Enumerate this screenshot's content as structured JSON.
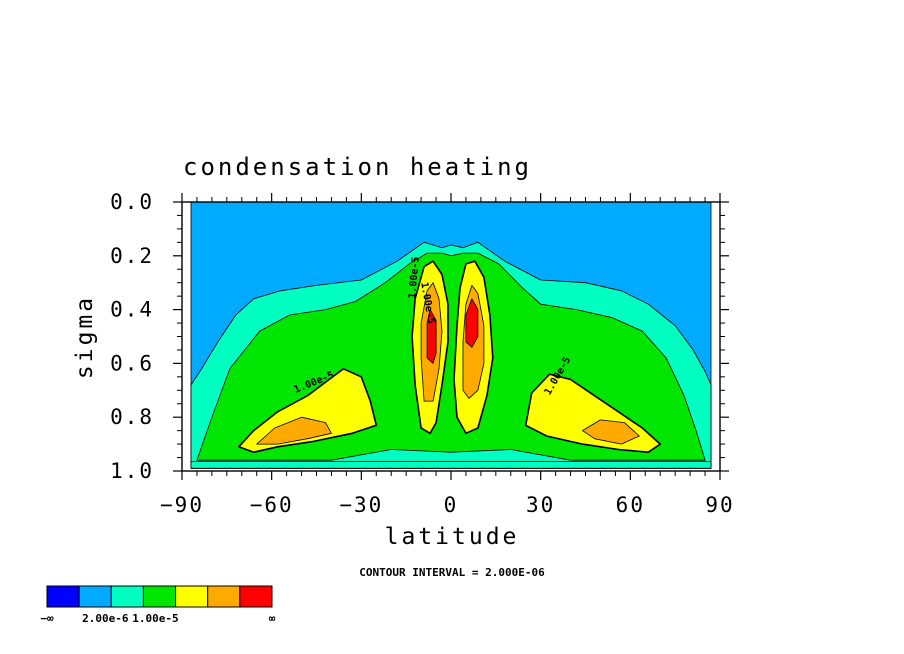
{
  "chart_data": {
    "type": "contour",
    "title": "condensation heating",
    "xlabel": "latitude",
    "ylabel": "sigma",
    "xlim": [
      -90,
      90
    ],
    "ylim": [
      1.0,
      0.0
    ],
    "x_ticks": [
      "−90",
      "−60",
      "−30",
      "0",
      "30",
      "60",
      "90"
    ],
    "x_tick_values": [
      -90,
      -60,
      -30,
      0,
      30,
      60,
      90
    ],
    "y_ticks": [
      "0.0",
      "0.2",
      "0.4",
      "0.6",
      "0.8",
      "1.0"
    ],
    "y_tick_values": [
      0.0,
      0.2,
      0.4,
      0.6,
      0.8,
      1.0
    ],
    "contour_interval_text": "CONTOUR INTERVAL = 2.000E-06",
    "contour_labels": [
      "1.00e-5",
      "1.00e-5",
      "1.00e-5",
      "1.00e-5"
    ],
    "colorbar": {
      "colors": [
        "#0000ff",
        "#00aaff",
        "#00ffc0",
        "#00e600",
        "#ffff00",
        "#ffaa00",
        "#ff0000"
      ],
      "labels": [
        "−∞",
        "2.00e-6",
        "1.00e-5",
        "∞"
      ]
    },
    "regions": [
      {
        "level": 1,
        "name": "background",
        "points": [
          [
            -87,
            0.0
          ],
          [
            87,
            0.0
          ],
          [
            87,
            0.99
          ],
          [
            -87,
            0.99
          ]
        ]
      },
      {
        "level": 2,
        "name": "envelope",
        "points": [
          [
            -87,
            0.68
          ],
          [
            -84,
            0.63
          ],
          [
            -78,
            0.52
          ],
          [
            -72,
            0.42
          ],
          [
            -66,
            0.36
          ],
          [
            -57,
            0.33
          ],
          [
            -45,
            0.31
          ],
          [
            -30,
            0.29
          ],
          [
            -18,
            0.22
          ],
          [
            -9,
            0.15
          ],
          [
            -3,
            0.17
          ],
          [
            0,
            0.16
          ],
          [
            4,
            0.17
          ],
          [
            9,
            0.15
          ],
          [
            18,
            0.22
          ],
          [
            30,
            0.29
          ],
          [
            45,
            0.3
          ],
          [
            57,
            0.33
          ],
          [
            66,
            0.38
          ],
          [
            75,
            0.46
          ],
          [
            81,
            0.55
          ],
          [
            85,
            0.63
          ],
          [
            87,
            0.68
          ],
          [
            87,
            0.99
          ],
          [
            -87,
            0.99
          ]
        ]
      },
      {
        "level": 3,
        "name": "green-band",
        "points": [
          [
            -85,
            0.96
          ],
          [
            -80,
            0.8
          ],
          [
            -74,
            0.62
          ],
          [
            -64,
            0.48
          ],
          [
            -54,
            0.42
          ],
          [
            -42,
            0.4
          ],
          [
            -32,
            0.37
          ],
          [
            -22,
            0.3
          ],
          [
            -14,
            0.23
          ],
          [
            -8,
            0.19
          ],
          [
            -3,
            0.19
          ],
          [
            0,
            0.2
          ],
          [
            4,
            0.19
          ],
          [
            9,
            0.19
          ],
          [
            16,
            0.23
          ],
          [
            24,
            0.32
          ],
          [
            30,
            0.38
          ],
          [
            42,
            0.4
          ],
          [
            54,
            0.43
          ],
          [
            64,
            0.48
          ],
          [
            72,
            0.58
          ],
          [
            78,
            0.72
          ],
          [
            82,
            0.85
          ],
          [
            85,
            0.96
          ],
          [
            40,
            0.96
          ],
          [
            20,
            0.92
          ],
          [
            0,
            0.93
          ],
          [
            -20,
            0.92
          ],
          [
            -40,
            0.96
          ]
        ]
      },
      {
        "level": 4,
        "name": "south-yellow",
        "points": [
          [
            -71,
            0.91
          ],
          [
            -66,
            0.85
          ],
          [
            -58,
            0.78
          ],
          [
            -48,
            0.72
          ],
          [
            -42,
            0.67
          ],
          [
            -36,
            0.62
          ],
          [
            -30,
            0.65
          ],
          [
            -27,
            0.74
          ],
          [
            -25,
            0.83
          ],
          [
            -33,
            0.86
          ],
          [
            -46,
            0.89
          ],
          [
            -58,
            0.91
          ],
          [
            -66,
            0.93
          ]
        ]
      },
      {
        "level": 5,
        "name": "south-orange",
        "points": [
          [
            -65,
            0.9
          ],
          [
            -59,
            0.84
          ],
          [
            -50,
            0.8
          ],
          [
            -42,
            0.82
          ],
          [
            -40,
            0.86
          ],
          [
            -48,
            0.88
          ],
          [
            -58,
            0.9
          ]
        ]
      },
      {
        "level": 4,
        "name": "north-yellow",
        "points": [
          [
            25,
            0.83
          ],
          [
            27,
            0.71
          ],
          [
            33,
            0.64
          ],
          [
            40,
            0.66
          ],
          [
            48,
            0.72
          ],
          [
            56,
            0.78
          ],
          [
            64,
            0.84
          ],
          [
            70,
            0.9
          ],
          [
            66,
            0.93
          ],
          [
            56,
            0.92
          ],
          [
            44,
            0.9
          ],
          [
            32,
            0.87
          ]
        ]
      },
      {
        "level": 5,
        "name": "north-orange",
        "points": [
          [
            44,
            0.85
          ],
          [
            50,
            0.81
          ],
          [
            58,
            0.82
          ],
          [
            63,
            0.87
          ],
          [
            57,
            0.9
          ],
          [
            48,
            0.88
          ]
        ]
      },
      {
        "level": 4,
        "name": "tropics-south-yellow",
        "points": [
          [
            -10,
            0.84
          ],
          [
            -12,
            0.68
          ],
          [
            -13,
            0.5
          ],
          [
            -12,
            0.36
          ],
          [
            -9,
            0.24
          ],
          [
            -6,
            0.22
          ],
          [
            -3,
            0.27
          ],
          [
            -1,
            0.38
          ],
          [
            -1,
            0.52
          ],
          [
            -3,
            0.68
          ],
          [
            -5,
            0.82
          ],
          [
            -7,
            0.86
          ]
        ]
      },
      {
        "level": 5,
        "name": "tropics-south-orange",
        "points": [
          [
            -9,
            0.74
          ],
          [
            -10,
            0.58
          ],
          [
            -10,
            0.45
          ],
          [
            -8,
            0.33
          ],
          [
            -6,
            0.3
          ],
          [
            -4,
            0.36
          ],
          [
            -3,
            0.48
          ],
          [
            -4,
            0.62
          ],
          [
            -6,
            0.74
          ]
        ]
      },
      {
        "level": 6,
        "name": "tropics-south-red",
        "points": [
          [
            -8,
            0.58
          ],
          [
            -8,
            0.45
          ],
          [
            -7,
            0.4
          ],
          [
            -5,
            0.44
          ],
          [
            -5,
            0.56
          ],
          [
            -6,
            0.6
          ]
        ]
      },
      {
        "level": 4,
        "name": "tropics-north-yellow",
        "points": [
          [
            2,
            0.8
          ],
          [
            1,
            0.66
          ],
          [
            2,
            0.46
          ],
          [
            3,
            0.32
          ],
          [
            5,
            0.23
          ],
          [
            8,
            0.22
          ],
          [
            11,
            0.28
          ],
          [
            13,
            0.42
          ],
          [
            14,
            0.58
          ],
          [
            12,
            0.72
          ],
          [
            9,
            0.84
          ],
          [
            5,
            0.86
          ]
        ]
      },
      {
        "level": 5,
        "name": "tropics-north-orange",
        "points": [
          [
            4,
            0.7
          ],
          [
            4,
            0.52
          ],
          [
            5,
            0.38
          ],
          [
            7,
            0.31
          ],
          [
            9,
            0.34
          ],
          [
            11,
            0.46
          ],
          [
            11,
            0.6
          ],
          [
            9,
            0.7
          ],
          [
            6,
            0.73
          ]
        ]
      },
      {
        "level": 6,
        "name": "tropics-north-red",
        "points": [
          [
            5,
            0.52
          ],
          [
            5,
            0.42
          ],
          [
            7,
            0.36
          ],
          [
            9,
            0.4
          ],
          [
            9,
            0.5
          ],
          [
            7,
            0.54
          ]
        ]
      },
      {
        "level": 2,
        "name": "surface-band",
        "points": [
          [
            -87,
            0.965
          ],
          [
            87,
            0.965
          ],
          [
            87,
            0.99
          ],
          [
            -87,
            0.99
          ]
        ]
      }
    ]
  }
}
